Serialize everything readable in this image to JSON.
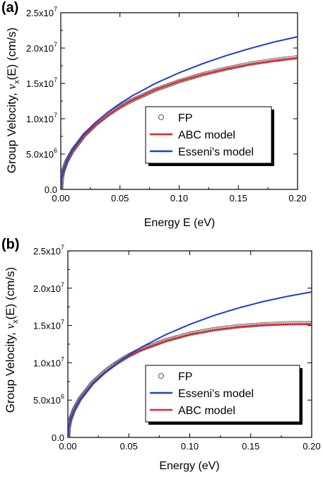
{
  "panels": [
    {
      "label": "(a)",
      "ylabel_pre": "Group Velocity, ",
      "ylabel_sym": "v",
      "ylabel_sub": "x",
      "ylabel_post": "(E) (cm/s)",
      "xlabel": "Energy E (eV)"
    },
    {
      "label": "(b)",
      "ylabel_pre": "Group Velocity, ",
      "ylabel_sym": "v",
      "ylabel_sub": "x",
      "ylabel_post": "(E) (cm/s)",
      "xlabel": "Energy (eV)"
    }
  ],
  "colors": {
    "fp": "#555555",
    "abc": "#e8262b",
    "esseni": "#1f3fd0"
  },
  "chart_data": [
    {
      "type": "line",
      "xlabel": "Energy E (eV)",
      "ylabel": "Group Velocity, v_x(E) (cm/s)",
      "xlim": [
        0,
        0.2
      ],
      "ylim": [
        0,
        25000000
      ],
      "xticks": [
        "0.00",
        "0.05",
        "0.10",
        "0.15",
        "0.20"
      ],
      "yticks": [
        "0.0",
        "5.0x10^6",
        "1.0x10^7",
        "1.5x10^7",
        "2.0x10^7",
        "2.5x10^7"
      ],
      "legend_position": "center-right",
      "legend_order": [
        "FP",
        "ABC model",
        "Esseni's model"
      ],
      "series": [
        {
          "name": "FP",
          "style": "markers",
          "x": [
            0.0,
            0.001,
            0.002,
            0.005,
            0.01,
            0.02,
            0.03,
            0.04,
            0.05,
            0.06,
            0.08,
            0.1,
            0.12,
            0.14,
            0.16,
            0.18,
            0.2
          ],
          "y": [
            0,
            1800000,
            2600000,
            4000000,
            5500000,
            7700000,
            9300000,
            10600000,
            11700000,
            12600000,
            14100000,
            15300000,
            16300000,
            17100000,
            17800000,
            18300000,
            18700000
          ]
        },
        {
          "name": "ABC model",
          "style": "line",
          "x": [
            0.0,
            0.001,
            0.002,
            0.005,
            0.01,
            0.02,
            0.03,
            0.04,
            0.05,
            0.06,
            0.08,
            0.1,
            0.12,
            0.14,
            0.16,
            0.18,
            0.2
          ],
          "y": [
            0,
            1750000,
            2500000,
            3900000,
            5500000,
            7650000,
            9250000,
            10550000,
            11650000,
            12600000,
            14100000,
            15300000,
            16250000,
            17050000,
            17700000,
            18200000,
            18600000
          ]
        },
        {
          "name": "Esseni's model",
          "style": "line",
          "x": [
            0.0,
            0.001,
            0.002,
            0.005,
            0.01,
            0.02,
            0.03,
            0.04,
            0.05,
            0.06,
            0.08,
            0.1,
            0.12,
            0.14,
            0.16,
            0.18,
            0.2
          ],
          "y": [
            0,
            1800000,
            2550000,
            4000000,
            5650000,
            7900000,
            9550000,
            10950000,
            12150000,
            13200000,
            15000000,
            16500000,
            17800000,
            18950000,
            19950000,
            20850000,
            21600000
          ]
        }
      ]
    },
    {
      "type": "line",
      "xlabel": "Energy (eV)",
      "ylabel": "Group Velocity, v_x(E) (cm/s)",
      "xlim": [
        0,
        0.2
      ],
      "ylim": [
        0,
        25000000
      ],
      "xticks": [
        "0.00",
        "0.05",
        "0.10",
        "0.15",
        "0.20"
      ],
      "yticks": [
        "0.0",
        "5.0x10^6",
        "1.0x10^7",
        "1.5x10^7",
        "2.0x10^7",
        "2.5x10^7"
      ],
      "legend_position": "lower-right",
      "legend_order": [
        "FP",
        "Esseni's model",
        "ABC model"
      ],
      "series": [
        {
          "name": "FP",
          "style": "markers",
          "x": [
            0.0,
            0.001,
            0.002,
            0.005,
            0.01,
            0.02,
            0.03,
            0.04,
            0.05,
            0.06,
            0.08,
            0.1,
            0.12,
            0.14,
            0.16,
            0.18,
            0.2
          ],
          "y": [
            0,
            1600000,
            2400000,
            3700000,
            5200000,
            7300000,
            8800000,
            10000000,
            11000000,
            11800000,
            13000000,
            13900000,
            14500000,
            14900000,
            15150000,
            15300000,
            15350000
          ]
        },
        {
          "name": "Esseni's model",
          "style": "line",
          "x": [
            0.0,
            0.001,
            0.002,
            0.005,
            0.01,
            0.02,
            0.03,
            0.04,
            0.05,
            0.06,
            0.08,
            0.1,
            0.12,
            0.14,
            0.16,
            0.18,
            0.2
          ],
          "y": [
            0,
            1600000,
            2300000,
            3600000,
            5050000,
            7100000,
            8650000,
            9950000,
            11050000,
            12050000,
            13750000,
            15150000,
            16350000,
            17350000,
            18200000,
            18900000,
            19500000
          ]
        },
        {
          "name": "ABC model",
          "style": "line",
          "x": [
            0.0,
            0.001,
            0.002,
            0.005,
            0.01,
            0.02,
            0.03,
            0.04,
            0.05,
            0.06,
            0.08,
            0.1,
            0.12,
            0.14,
            0.16,
            0.18,
            0.2
          ],
          "y": [
            0,
            1550000,
            2300000,
            3600000,
            5100000,
            7200000,
            8700000,
            9900000,
            10900000,
            11700000,
            12900000,
            13800000,
            14400000,
            14800000,
            15050000,
            15150000,
            15200000
          ]
        }
      ]
    }
  ]
}
